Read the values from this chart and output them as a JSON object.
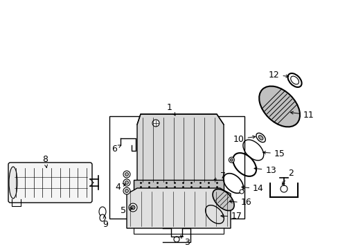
{
  "bg_color": "#ffffff",
  "line_color": "#000000",
  "text_color": "#000000",
  "font_size": 8,
  "fig_width": 4.89,
  "fig_height": 3.6,
  "dpi": 100
}
